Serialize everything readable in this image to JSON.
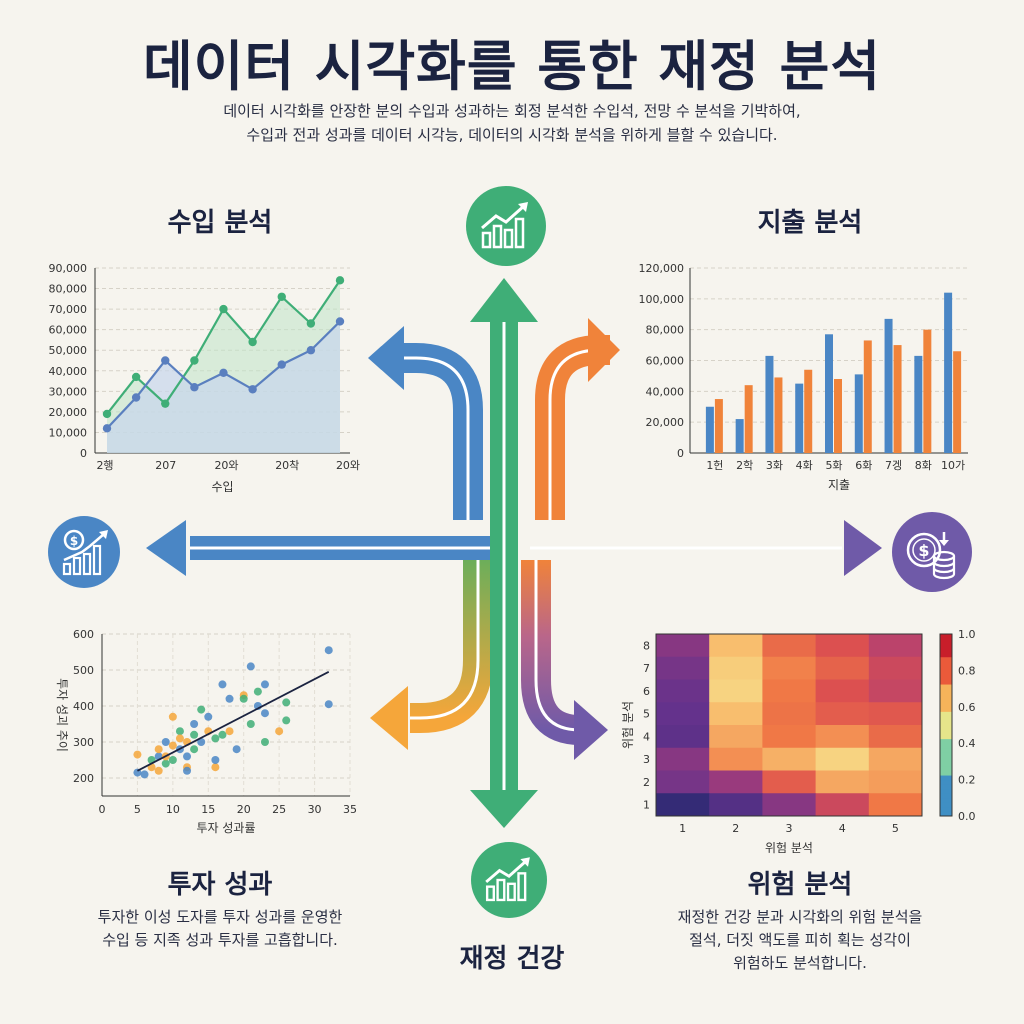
{
  "title": "데이터 시각화를 통한 재정 분석",
  "subtitle": [
    "데이터 시각화를 안장한 분의 수입과 성과하는 회정 분석한 수입석, 전망 수 분석을 기박하여,",
    "수입과 전과 성과를 데이터 시각능, 데이터의 시각화 분석을 위하게 블할 수 있습니다."
  ],
  "colors": {
    "blue": "#4a86c5",
    "green": "#3fae77",
    "orange": "#f0833a",
    "yellow": "#f5a63a",
    "purple": "#6f5aa8",
    "navy": "#1b2340"
  },
  "icons": {
    "top": "growth-chart-icon",
    "left": "money-growth-icon",
    "right": "coins-icon",
    "bottom": "growth-chart-icon"
  },
  "sections": {
    "income": {
      "title": "수입 분석"
    },
    "expense": {
      "title": "지출 분석"
    },
    "investment": {
      "title": "투자 성과",
      "desc": [
        "투자한 이성 도자를 투자 성과를 운영한",
        "수입 등 지족 성과 투자를 고흡합니다."
      ]
    },
    "risk": {
      "title": "위험 분석",
      "desc": [
        "재정한 건강 분과 시각화의 위험 분석을",
        "절석, 더짓 액도를 피히 획는 성각이",
        "위험하도 분석합니다."
      ]
    },
    "health": {
      "title": "재정 건강"
    }
  },
  "chart_data": [
    {
      "type": "line",
      "xlabel": "수입",
      "x_ticks": [
        "2행",
        "207",
        "20와",
        "20착",
        "20와"
      ],
      "ylim": [
        0,
        90000
      ],
      "y_ticks": [
        "0",
        "10,000",
        "20,000",
        "30,000",
        "40,000",
        "50,000",
        "60,000",
        "70,000",
        "80,000",
        "90,000"
      ],
      "series": [
        {
          "color": "#3fae77",
          "fill": "area",
          "values": [
            19000,
            37000,
            24000,
            45000,
            70000,
            54000,
            76000,
            63000,
            84000
          ]
        },
        {
          "color": "#5a7fbf",
          "fill": "area",
          "values": [
            12000,
            27000,
            45000,
            32000,
            39000,
            31000,
            43000,
            50000,
            64000
          ]
        }
      ]
    },
    {
      "type": "bar",
      "xlabel": "지출",
      "categories": [
        "1헌",
        "2학",
        "3화",
        "4화",
        "5화",
        "6화",
        "7겡",
        "8화",
        "10가"
      ],
      "ylim": [
        0,
        120000
      ],
      "y_ticks": [
        "0",
        "20,000",
        "40,000",
        "60,000",
        "80,000",
        "100,000",
        "120,000"
      ],
      "series": [
        {
          "color": "#4a86c5",
          "values": [
            30000,
            22000,
            63000,
            45000,
            77000,
            51000,
            87000,
            63000,
            104000
          ]
        },
        {
          "color": "#f0833a",
          "values": [
            35000,
            44000,
            49000,
            54000,
            48000,
            73000,
            70000,
            80000,
            66000
          ]
        }
      ]
    },
    {
      "type": "scatter",
      "xlabel": "투자 성과률",
      "ylabel": "투자 성괴 추이",
      "xlim": [
        0,
        35
      ],
      "ylim": [
        150,
        600
      ],
      "x_ticks": [
        "0",
        "5",
        "10",
        "15",
        "20",
        "25",
        "30",
        "35"
      ],
      "y_ticks": [
        "200",
        "300",
        "400",
        "500",
        "600"
      ],
      "trend": [
        [
          5,
          220
        ],
        [
          32,
          495
        ]
      ],
      "points": [
        [
          5,
          215,
          "#4a86c5"
        ],
        [
          5,
          265,
          "#f5a63a"
        ],
        [
          6,
          210,
          "#4a86c5"
        ],
        [
          7,
          230,
          "#f5a63a"
        ],
        [
          7,
          250,
          "#3fae77"
        ],
        [
          8,
          260,
          "#4a86c5"
        ],
        [
          8,
          220,
          "#f5a63a"
        ],
        [
          8,
          280,
          "#f5a63a"
        ],
        [
          9,
          240,
          "#3fae77"
        ],
        [
          9,
          300,
          "#4a86c5"
        ],
        [
          9,
          260,
          "#f5a63a"
        ],
        [
          10,
          290,
          "#f5a63a"
        ],
        [
          10,
          370,
          "#f5a63a"
        ],
        [
          10,
          250,
          "#3fae77"
        ],
        [
          11,
          280,
          "#4a86c5"
        ],
        [
          11,
          330,
          "#3fae77"
        ],
        [
          11,
          310,
          "#f5a63a"
        ],
        [
          12,
          260,
          "#4a86c5"
        ],
        [
          12,
          300,
          "#f5a63a"
        ],
        [
          12,
          230,
          "#f5a63a"
        ],
        [
          12,
          220,
          "#4a86c5"
        ],
        [
          13,
          350,
          "#4a86c5"
        ],
        [
          13,
          320,
          "#3fae77"
        ],
        [
          13,
          280,
          "#3fae77"
        ],
        [
          14,
          390,
          "#3fae77"
        ],
        [
          14,
          300,
          "#4a86c5"
        ],
        [
          15,
          330,
          "#f5a63a"
        ],
        [
          15,
          370,
          "#4a86c5"
        ],
        [
          16,
          230,
          "#f5a63a"
        ],
        [
          16,
          250,
          "#4a86c5"
        ],
        [
          16,
          310,
          "#3fae77"
        ],
        [
          17,
          460,
          "#4a86c5"
        ],
        [
          17,
          320,
          "#3fae77"
        ],
        [
          18,
          420,
          "#4a86c5"
        ],
        [
          18,
          330,
          "#f5a63a"
        ],
        [
          19,
          280,
          "#4a86c5"
        ],
        [
          20,
          430,
          "#f5a63a"
        ],
        [
          20,
          420,
          "#3fae77"
        ],
        [
          21,
          350,
          "#3fae77"
        ],
        [
          21,
          510,
          "#4a86c5"
        ],
        [
          22,
          400,
          "#4a86c5"
        ],
        [
          22,
          440,
          "#3fae77"
        ],
        [
          23,
          460,
          "#4a86c5"
        ],
        [
          23,
          300,
          "#3fae77"
        ],
        [
          23,
          380,
          "#4a86c5"
        ],
        [
          25,
          330,
          "#f5a63a"
        ],
        [
          26,
          410,
          "#3fae77"
        ],
        [
          26,
          360,
          "#3fae77"
        ],
        [
          32,
          555,
          "#4a86c5"
        ],
        [
          32,
          405,
          "#4a86c5"
        ]
      ]
    },
    {
      "type": "heatmap",
      "xlabel": "위험 분석",
      "ylabel": "위험 분석",
      "x": [
        "1",
        "2",
        "3",
        "4",
        "5"
      ],
      "y": [
        "1",
        "2",
        "3",
        "4",
        "5",
        "6",
        "7",
        "8"
      ],
      "colorbar": {
        "range": [
          0.0,
          1.0
        ],
        "ticks": [
          "0.0",
          "0.2",
          "0.4",
          "0.6",
          "0.8",
          "1.0"
        ]
      },
      "values": [
        [
          0.3,
          0.85,
          0.65,
          0.55,
          0.45
        ],
        [
          0.25,
          0.9,
          0.72,
          0.62,
          0.5
        ],
        [
          0.22,
          0.92,
          0.7,
          0.55,
          0.48
        ],
        [
          0.2,
          0.85,
          0.68,
          0.6,
          0.58
        ],
        [
          0.18,
          0.8,
          0.7,
          0.75,
          0.65
        ],
        [
          0.3,
          0.75,
          0.82,
          0.92,
          0.8
        ],
        [
          0.25,
          0.35,
          0.6,
          0.8,
          0.78
        ],
        [
          0.05,
          0.15,
          0.3,
          0.5,
          0.7
        ]
      ]
    }
  ]
}
